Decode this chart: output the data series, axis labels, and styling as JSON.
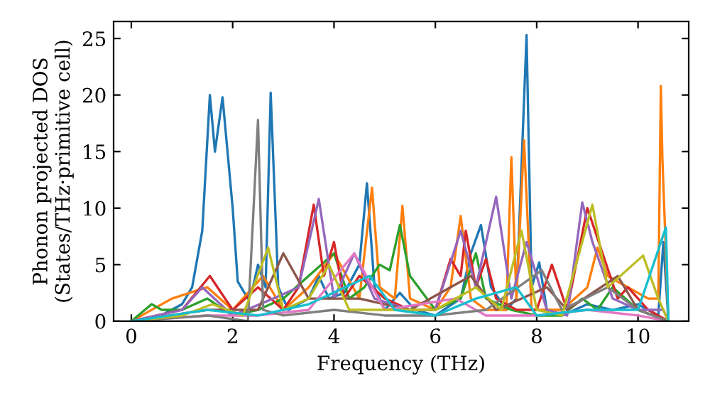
{
  "chart_data": {
    "type": "line",
    "xlabel": "Frequency (THz)",
    "ylabel": "Phonon projected DOS\n(States/THz·primitive cell)",
    "xlim": [
      -0.35,
      11.0
    ],
    "ylim": [
      0,
      26.5
    ],
    "xticks": [
      0,
      2,
      4,
      6,
      8,
      10
    ],
    "yticks": [
      0,
      5,
      10,
      15,
      20,
      25
    ],
    "grid": false,
    "marker": "none",
    "line_style": "solid",
    "series": [
      {
        "color": "#1f77b4",
        "x": [
          0,
          0.5,
          1.0,
          1.2,
          1.4,
          1.55,
          1.65,
          1.8,
          2.0,
          2.1,
          2.3,
          2.4,
          2.5,
          2.65,
          2.75,
          2.9,
          3.1,
          3.5,
          3.7,
          3.9,
          4.2,
          4.5,
          4.65,
          4.8,
          5.0,
          5.3,
          5.6,
          6.0,
          6.5,
          6.7,
          6.9,
          7.1,
          7.4,
          7.6,
          7.8,
          7.9,
          8.05,
          8.2,
          8.5,
          9.0,
          9.5,
          10.0,
          10.4,
          10.5,
          10.6
        ],
        "values": [
          0,
          0.3,
          1.5,
          3,
          8,
          20,
          15,
          19.8,
          10,
          3.5,
          2,
          3,
          5,
          3,
          20.2,
          3,
          1,
          2,
          4,
          2,
          2.5,
          5,
          12.2,
          3,
          1,
          2.5,
          1,
          0.5,
          2,
          6,
          8.5,
          3,
          1,
          2,
          25.3,
          3,
          5.2,
          1,
          0.5,
          1.5,
          1,
          1.5,
          0.5,
          7,
          0
        ]
      },
      {
        "color": "#ff7f0e",
        "x": [
          0,
          0.8,
          1.5,
          2.0,
          2.6,
          3.0,
          3.5,
          4.0,
          4.5,
          4.75,
          4.9,
          5.2,
          5.35,
          5.5,
          6.0,
          6.3,
          6.5,
          6.7,
          7.0,
          7.4,
          7.5,
          7.6,
          7.75,
          7.9,
          8.5,
          9.0,
          9.2,
          9.4,
          9.8,
          10.2,
          10.4,
          10.45,
          10.48,
          10.6
        ],
        "values": [
          0,
          2,
          3,
          1,
          4,
          1,
          3,
          6,
          2,
          11.8,
          3,
          2,
          10.2,
          2,
          1,
          3,
          9.3,
          2,
          1,
          1,
          14.5,
          2,
          16,
          1,
          1,
          3,
          6.5,
          4,
          3,
          2,
          2,
          20.8,
          14.5,
          0
        ]
      },
      {
        "color": "#2ca02c",
        "x": [
          0,
          0.4,
          0.6,
          1.0,
          1.5,
          2.0,
          2.5,
          3.0,
          3.5,
          4.0,
          4.3,
          4.6,
          4.9,
          5.1,
          5.3,
          5.5,
          6.0,
          6.5,
          6.8,
          7.0,
          7.5,
          8.0,
          8.5,
          8.9,
          9.2,
          9.5,
          10.0,
          10.6
        ],
        "values": [
          0,
          1.5,
          1,
          1,
          2,
          0.5,
          1,
          2,
          4,
          6,
          2,
          3,
          5,
          4.5,
          8.5,
          4,
          1,
          2,
          6,
          2,
          1,
          0.5,
          0.5,
          2,
          1,
          3,
          1,
          0
        ]
      },
      {
        "color": "#d62728",
        "x": [
          0,
          1.0,
          1.55,
          2.0,
          2.5,
          3.0,
          3.3,
          3.6,
          3.8,
          4.0,
          4.2,
          4.5,
          5.0,
          5.5,
          6.0,
          6.3,
          6.5,
          6.6,
          6.8,
          7.0,
          7.2,
          7.6,
          8.0,
          8.3,
          8.6,
          9.0,
          9.3,
          9.6,
          9.8,
          10.2,
          10.6
        ],
        "values": [
          0,
          1,
          4,
          1,
          3,
          1,
          3,
          10.3,
          4,
          7,
          2,
          4,
          2,
          1,
          1,
          5.5,
          4,
          8,
          3,
          5.5,
          2,
          1,
          1,
          5,
          1,
          10,
          6,
          2,
          3,
          1,
          0
        ]
      },
      {
        "color": "#9467bd",
        "x": [
          0,
          1.0,
          1.4,
          2.0,
          2.8,
          3.3,
          3.7,
          4.0,
          4.4,
          4.8,
          5.5,
          6.0,
          6.5,
          6.8,
          7.2,
          7.5,
          7.8,
          8.2,
          8.6,
          8.9,
          9.1,
          9.5,
          10.0,
          10.5,
          10.6
        ],
        "values": [
          0,
          1,
          3,
          0.5,
          2,
          3,
          10.8,
          2,
          6,
          2,
          1,
          1,
          8,
          3,
          11,
          2,
          7,
          1,
          0.5,
          10.5,
          7,
          2,
          1,
          1,
          0
        ]
      },
      {
        "color": "#8c564b",
        "x": [
          0,
          1.5,
          2.5,
          3.0,
          3.5,
          4.5,
          5.5,
          6.7,
          7.2,
          8.2,
          8.6,
          9.6,
          10.0,
          10.6
        ],
        "values": [
          0,
          1,
          1,
          6,
          2,
          2,
          1,
          4,
          1,
          3,
          1,
          4,
          1,
          0
        ]
      },
      {
        "color": "#e377c2",
        "x": [
          0,
          1.5,
          2.5,
          3.5,
          4.4,
          5.0,
          6.4,
          7.0,
          8.0,
          9.0,
          10.0,
          10.6
        ],
        "values": [
          0,
          0.5,
          0.5,
          1,
          6,
          1,
          2,
          0.5,
          0.5,
          1,
          0.5,
          0
        ]
      },
      {
        "color": "#7f7f7f",
        "x": [
          0,
          1.5,
          2.3,
          2.5,
          2.6,
          3.0,
          4.0,
          5.0,
          6.0,
          7.0,
          8.1,
          8.5,
          9.4,
          10.0,
          10.6
        ],
        "values": [
          0,
          0.5,
          0,
          17.8,
          1,
          0.5,
          1,
          0.5,
          0.5,
          1,
          4.5,
          1,
          3,
          1,
          0
        ]
      },
      {
        "color": "#bcbd22",
        "x": [
          0,
          1.0,
          1.6,
          2.2,
          2.7,
          3.0,
          3.5,
          3.9,
          4.3,
          5.0,
          6.0,
          6.8,
          7.3,
          7.7,
          8.0,
          8.5,
          9.1,
          9.4,
          10.1,
          10.4,
          10.6
        ],
        "values": [
          0,
          0.5,
          1.5,
          0.5,
          6.5,
          1,
          2,
          5,
          1,
          1,
          1,
          3,
          1,
          8,
          1,
          0.5,
          10.3,
          3,
          5.8,
          2,
          0
        ]
      },
      {
        "color": "#17becf",
        "x": [
          0,
          1.5,
          2.5,
          3.5,
          4.7,
          5.2,
          6.0,
          6.8,
          7.6,
          8.0,
          9.0,
          10.0,
          10.55,
          10.6
        ],
        "values": [
          0,
          1,
          0.5,
          1.5,
          4,
          1,
          0.5,
          2,
          3,
          0.5,
          1,
          1,
          8.3,
          0
        ]
      }
    ]
  }
}
